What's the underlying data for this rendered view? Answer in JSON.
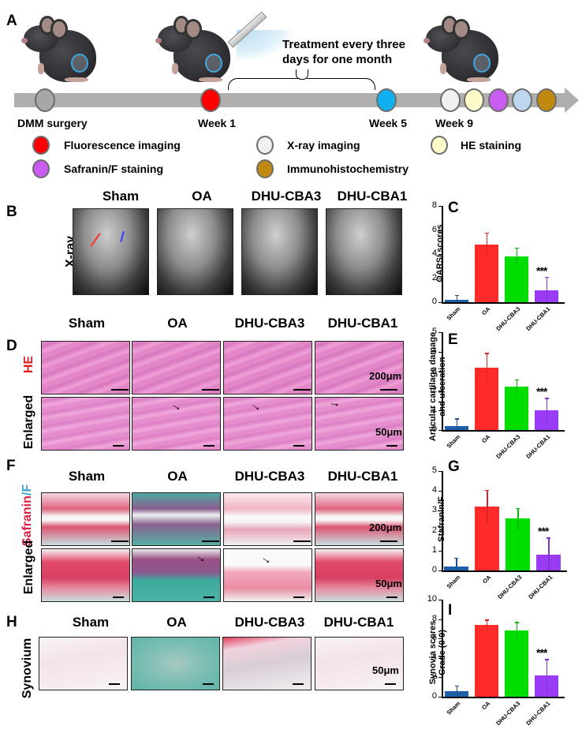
{
  "panel_a": {
    "letter": "A",
    "treatment_note_line1": "Treatment every three",
    "treatment_note_line2": "days for one month",
    "timeline": [
      {
        "label": "DMM surgery",
        "color": "#a7a7a7"
      },
      {
        "label": "Week 1",
        "color": "#ff0000"
      },
      {
        "label": "Week 5",
        "color": "#0fb0f0"
      },
      {
        "label": "Week 9",
        "colors": [
          "#f0f0f0",
          "#fdfbc9",
          "#c95bf0",
          "#bdd7f0",
          "#c08a10"
        ]
      }
    ],
    "legend": [
      {
        "label": "Fluorescence imaging",
        "color": "#ff0000"
      },
      {
        "label": "X-ray imaging",
        "color": "#f0f0f0"
      },
      {
        "label": "HE staining",
        "color": "#fdfbc9"
      },
      {
        "label": "Safranin/F staining",
        "color": "#c95bf0"
      },
      {
        "label": "Immunohistochemistry",
        "color": "#c08a10"
      }
    ]
  },
  "groups": [
    "Sham",
    "OA",
    "DHU-CBA3",
    "DHU-CBA1"
  ],
  "panel_b": {
    "letter": "B",
    "row_label": "X-ray"
  },
  "panel_d": {
    "letter": "D",
    "row_labels": [
      "HE",
      "Enlarged"
    ],
    "scale_top": "200μm",
    "scale_bottom": "50μm"
  },
  "panel_f": {
    "letter": "F",
    "row_label_parts": [
      "Safranin",
      "/",
      "F"
    ],
    "row_label_enlarged": "Enlarged",
    "scale_top": "200μm",
    "scale_bottom": "50μm"
  },
  "panel_h": {
    "letter": "H",
    "row_label": "Synovium",
    "scale": "50μm"
  },
  "colors": {
    "sham": "#1f5fa8",
    "oa": "#ff2a2a",
    "cba3": "#00dd00",
    "cba1": "#9a3cf5"
  },
  "chart_data": [
    {
      "type": "bar",
      "panel": "C",
      "title": "",
      "xlabel": "",
      "ylabel": "OARSI scores",
      "categories": [
        "Sham",
        "OA",
        "DHU-CBA3",
        "DHU-CBA1"
      ],
      "values": [
        0.2,
        4.8,
        3.8,
        1.0
      ],
      "errors": [
        0.4,
        1.0,
        0.75,
        1.1
      ],
      "yticks": [
        0,
        2,
        4,
        6,
        8
      ],
      "ylim": [
        0,
        8
      ],
      "annotations": [
        {
          "category": "DHU-CBA1",
          "text": "***"
        }
      ],
      "grid": false
    },
    {
      "type": "bar",
      "panel": "E",
      "title": "",
      "xlabel": "",
      "ylabel": "Articular cartilage damage and ulceration",
      "ylabel_lines": [
        "Articular cartilage damage",
        "and ulceration"
      ],
      "categories": [
        "Sham",
        "OA",
        "DHU-CBA3",
        "DHU-CBA1"
      ],
      "values": [
        0.2,
        3.2,
        2.2,
        1.0
      ],
      "errors": [
        0.4,
        0.75,
        0.4,
        0.65
      ],
      "yticks": [
        0,
        1,
        2,
        3,
        4,
        5
      ],
      "ylim": [
        0,
        5
      ],
      "annotations": [
        {
          "category": "DHU-CBA1",
          "text": "***"
        }
      ],
      "grid": false
    },
    {
      "type": "bar",
      "panel": "G",
      "title": "",
      "xlabel": "",
      "ylabel": "Stafranin/F",
      "categories": [
        "Sham",
        "OA",
        "DHU-CBA3",
        "DHU-CBA1"
      ],
      "values": [
        0.2,
        3.2,
        2.6,
        0.8
      ],
      "errors": [
        0.45,
        0.85,
        0.55,
        0.85
      ],
      "yticks": [
        0,
        1,
        2,
        3,
        4,
        5
      ],
      "ylim": [
        0,
        5
      ],
      "annotations": [
        {
          "category": "DHU-CBA1",
          "text": "***"
        }
      ],
      "grid": false
    },
    {
      "type": "bar",
      "panel": "I",
      "title": "",
      "xlabel": "",
      "ylabel": "Synovia scores Grade (0-9)",
      "ylabel_lines": [
        "Synovia scores",
        "Grade (0-9)"
      ],
      "categories": [
        "Sham",
        "OA",
        "DHU-CBA3",
        "DHU-CBA1"
      ],
      "values": [
        0.6,
        7.4,
        6.8,
        2.2
      ],
      "errors": [
        0.55,
        0.55,
        0.9,
        1.7
      ],
      "yticks": [
        0,
        2,
        4,
        6,
        8,
        10
      ],
      "ylim": [
        0,
        10
      ],
      "annotations": [
        {
          "category": "DHU-CBA1",
          "text": "***"
        }
      ],
      "grid": false
    }
  ]
}
